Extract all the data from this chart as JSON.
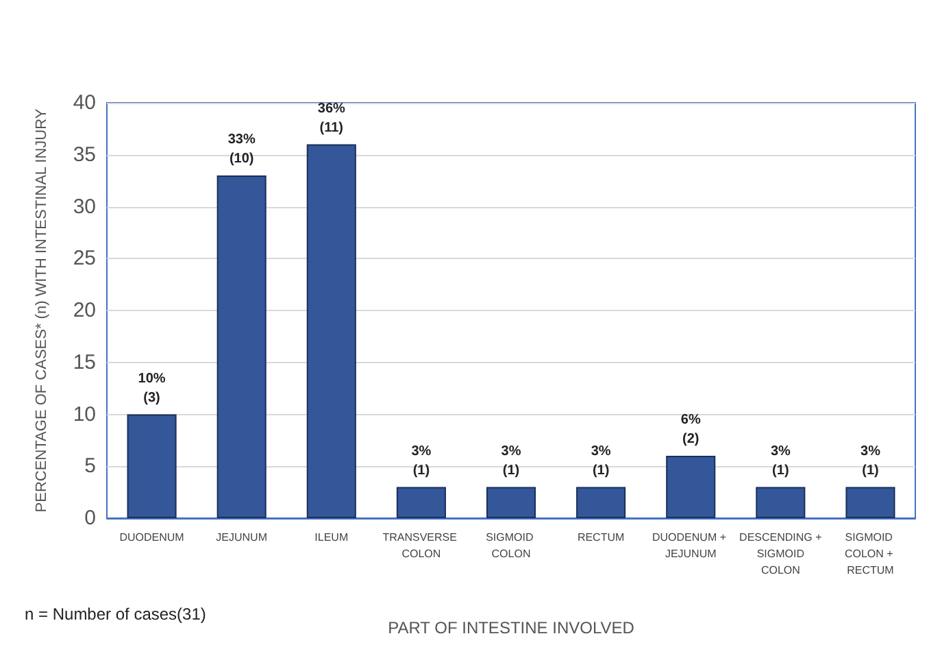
{
  "chart_data": {
    "type": "bar",
    "xlabel": "PART OF INTESTINE INVOLVED",
    "ylabel": "PERCENTAGE OF CASES* (n) WITH INTESTINAL INJURY",
    "categories": [
      "DUODENUM",
      "JEJUNUM",
      "ILEUM",
      "TRANSVERSE COLON",
      "SIGMOID COLON",
      "RECTUM",
      "DUODENUM + JEJUNUM",
      "DESCENDING + SIGMOID COLON",
      "SIGMOID COLON + RECTUM"
    ],
    "values": [
      10,
      33,
      36,
      3,
      3,
      3,
      6,
      3,
      3
    ],
    "value_labels": [
      "10%\n(3)",
      "33%\n(10)",
      "36%\n(11)",
      "3%\n(1)",
      "3%\n(1)",
      "3%\n(1)",
      "6%\n(2)",
      "3%\n(1)",
      "3%\n(1)"
    ],
    "color": "#34579a",
    "ylim": [
      0,
      40
    ],
    "yticks": [
      0,
      5,
      10,
      15,
      20,
      25,
      30,
      35,
      40
    ],
    "grid": "y",
    "annotations": [
      "n = Number of cases(31)"
    ]
  }
}
